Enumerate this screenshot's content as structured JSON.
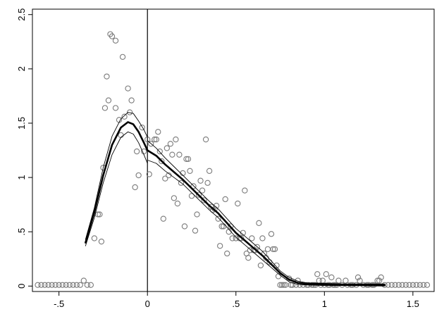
{
  "chart_data": {
    "type": "scatter",
    "title": "",
    "xlabel": "",
    "ylabel": "",
    "xlim": [
      -0.65,
      1.62
    ],
    "ylim": [
      -0.05,
      2.55
    ],
    "x_ticks": [
      -0.5,
      0,
      0.5,
      1,
      1.5
    ],
    "x_tick_labels": [
      "-.5",
      "0",
      ".5",
      "1",
      "1.5"
    ],
    "y_ticks": [
      0,
      0.5,
      1,
      1.5,
      2,
      2.5
    ],
    "y_tick_labels": [
      "0",
      ".5",
      "1",
      "1.5",
      "2",
      "2.5"
    ],
    "reference_line": {
      "axis": "x",
      "value": 0
    },
    "grid": false,
    "legend": "none",
    "series": [
      {
        "kind": "points",
        "marker": "hollow-circle",
        "color": "#7a7a7a",
        "points": [
          [
            -0.62,
            0.01
          ],
          [
            -0.6,
            0.01
          ],
          [
            -0.58,
            0.01
          ],
          [
            -0.56,
            0.01
          ],
          [
            -0.54,
            0.01
          ],
          [
            -0.52,
            0.01
          ],
          [
            -0.5,
            0.01
          ],
          [
            -0.48,
            0.01
          ],
          [
            -0.46,
            0.01
          ],
          [
            -0.44,
            0.01
          ],
          [
            -0.42,
            0.01
          ],
          [
            -0.4,
            0.01
          ],
          [
            -0.38,
            0.01
          ],
          [
            -0.36,
            0.05
          ],
          [
            -0.34,
            0.01
          ],
          [
            -0.32,
            0.01
          ],
          [
            -0.3,
            0.44
          ],
          [
            -0.28,
            0.66
          ],
          [
            -0.27,
            0.66
          ],
          [
            -0.26,
            0.41
          ],
          [
            -0.25,
            1.09
          ],
          [
            -0.24,
            1.64
          ],
          [
            -0.23,
            1.93
          ],
          [
            -0.22,
            1.71
          ],
          [
            -0.21,
            2.32
          ],
          [
            -0.2,
            2.3
          ],
          [
            -0.18,
            2.26
          ],
          [
            -0.18,
            1.64
          ],
          [
            -0.16,
            1.53
          ],
          [
            -0.15,
            1.39
          ],
          [
            -0.14,
            2.11
          ],
          [
            -0.13,
            1.56
          ],
          [
            -0.11,
            1.82
          ],
          [
            -0.1,
            1.6
          ],
          [
            -0.09,
            1.71
          ],
          [
            -0.07,
            0.91
          ],
          [
            -0.06,
            1.24
          ],
          [
            -0.05,
            1.02
          ],
          [
            -0.03,
            1.46
          ],
          [
            -0.02,
            1.24
          ],
          [
            0.0,
            1.35
          ],
          [
            0.01,
            1.03
          ],
          [
            0.02,
            1.31
          ],
          [
            0.04,
            1.35
          ],
          [
            0.05,
            1.35
          ],
          [
            0.06,
            1.42
          ],
          [
            0.07,
            1.24
          ],
          [
            0.08,
            1.15
          ],
          [
            0.09,
            0.62
          ],
          [
            0.1,
            0.99
          ],
          [
            0.11,
            1.27
          ],
          [
            0.12,
            1.02
          ],
          [
            0.13,
            1.31
          ],
          [
            0.14,
            1.21
          ],
          [
            0.15,
            0.81
          ],
          [
            0.16,
            1.35
          ],
          [
            0.17,
            0.76
          ],
          [
            0.18,
            1.21
          ],
          [
            0.19,
            0.95
          ],
          [
            0.2,
            1.04
          ],
          [
            0.21,
            0.55
          ],
          [
            0.22,
            1.17
          ],
          [
            0.23,
            1.17
          ],
          [
            0.24,
            1.06
          ],
          [
            0.25,
            0.83
          ],
          [
            0.26,
            0.92
          ],
          [
            0.27,
            0.51
          ],
          [
            0.28,
            0.66
          ],
          [
            0.29,
            0.84
          ],
          [
            0.3,
            0.97
          ],
          [
            0.31,
            0.88
          ],
          [
            0.32,
            0.79
          ],
          [
            0.33,
            1.35
          ],
          [
            0.34,
            0.95
          ],
          [
            0.35,
            1.06
          ],
          [
            0.36,
            0.73
          ],
          [
            0.37,
            0.7
          ],
          [
            0.38,
            0.71
          ],
          [
            0.39,
            0.74
          ],
          [
            0.4,
            0.62
          ],
          [
            0.41,
            0.37
          ],
          [
            0.42,
            0.55
          ],
          [
            0.43,
            0.55
          ],
          [
            0.44,
            0.8
          ],
          [
            0.45,
            0.3
          ],
          [
            0.46,
            0.5
          ],
          [
            0.47,
            0.55
          ],
          [
            0.48,
            0.44
          ],
          [
            0.5,
            0.44
          ],
          [
            0.51,
            0.76
          ],
          [
            0.52,
            0.44
          ],
          [
            0.53,
            0.44
          ],
          [
            0.54,
            0.49
          ],
          [
            0.55,
            0.88
          ],
          [
            0.56,
            0.3
          ],
          [
            0.57,
            0.26
          ],
          [
            0.58,
            0.33
          ],
          [
            0.59,
            0.44
          ],
          [
            0.6,
            0.33
          ],
          [
            0.61,
            0.33
          ],
          [
            0.62,
            0.36
          ],
          [
            0.63,
            0.58
          ],
          [
            0.64,
            0.19
          ],
          [
            0.65,
            0.44
          ],
          [
            0.66,
            0.3
          ],
          [
            0.67,
            0.26
          ],
          [
            0.68,
            0.34
          ],
          [
            0.69,
            0.22
          ],
          [
            0.7,
            0.48
          ],
          [
            0.71,
            0.34
          ],
          [
            0.72,
            0.34
          ],
          [
            0.73,
            0.19
          ],
          [
            0.74,
            0.09
          ],
          [
            0.75,
            0.01
          ],
          [
            0.76,
            0.01
          ],
          [
            0.77,
            0.01
          ],
          [
            0.78,
            0.01
          ],
          [
            0.8,
            0.07
          ],
          [
            0.81,
            0.01
          ],
          [
            0.82,
            0.01
          ],
          [
            0.84,
            0.01
          ],
          [
            0.85,
            0.05
          ],
          [
            0.86,
            0.01
          ],
          [
            0.88,
            0.01
          ],
          [
            0.9,
            0.01
          ],
          [
            0.91,
            0.01
          ],
          [
            0.93,
            0.01
          ],
          [
            0.94,
            0.01
          ],
          [
            0.95,
            0.01
          ],
          [
            0.96,
            0.11
          ],
          [
            0.97,
            0.05
          ],
          [
            0.98,
            0.01
          ],
          [
            0.99,
            0.05
          ],
          [
            1.0,
            0.01
          ],
          [
            1.01,
            0.11
          ],
          [
            1.02,
            0.01
          ],
          [
            1.03,
            0.01
          ],
          [
            1.04,
            0.08
          ],
          [
            1.05,
            0.01
          ],
          [
            1.06,
            0.01
          ],
          [
            1.07,
            0.01
          ],
          [
            1.08,
            0.05
          ],
          [
            1.1,
            0.01
          ],
          [
            1.12,
            0.05
          ],
          [
            1.13,
            0.01
          ],
          [
            1.15,
            0.01
          ],
          [
            1.16,
            0.01
          ],
          [
            1.18,
            0.01
          ],
          [
            1.19,
            0.08
          ],
          [
            1.2,
            0.05
          ],
          [
            1.22,
            0.01
          ],
          [
            1.24,
            0.01
          ],
          [
            1.25,
            0.01
          ],
          [
            1.27,
            0.01
          ],
          [
            1.28,
            0.01
          ],
          [
            1.3,
            0.05
          ],
          [
            1.31,
            0.05
          ],
          [
            1.32,
            0.08
          ],
          [
            1.34,
            0.01
          ],
          [
            1.36,
            0.01
          ],
          [
            1.38,
            0.01
          ],
          [
            1.4,
            0.01
          ],
          [
            1.42,
            0.01
          ],
          [
            1.44,
            0.01
          ],
          [
            1.46,
            0.01
          ],
          [
            1.48,
            0.01
          ],
          [
            1.5,
            0.01
          ],
          [
            1.52,
            0.01
          ],
          [
            1.54,
            0.01
          ],
          [
            1.56,
            0.01
          ],
          [
            1.58,
            0.01
          ]
        ]
      },
      {
        "kind": "line",
        "role": "fit-left",
        "color": "#000000",
        "width": "thick",
        "points": [
          [
            -0.35,
            0.4
          ],
          [
            -0.3,
            0.68
          ],
          [
            -0.25,
            1.02
          ],
          [
            -0.2,
            1.3
          ],
          [
            -0.15,
            1.46
          ],
          [
            -0.11,
            1.51
          ],
          [
            -0.08,
            1.49
          ],
          [
            -0.05,
            1.42
          ],
          [
            -0.02,
            1.32
          ],
          [
            0.0,
            1.25
          ]
        ]
      },
      {
        "kind": "line",
        "role": "ci-left-upper",
        "color": "#000000",
        "width": "thin",
        "points": [
          [
            -0.35,
            0.43
          ],
          [
            -0.3,
            0.72
          ],
          [
            -0.25,
            1.09
          ],
          [
            -0.2,
            1.38
          ],
          [
            -0.15,
            1.54
          ],
          [
            -0.11,
            1.6
          ],
          [
            -0.08,
            1.59
          ],
          [
            -0.05,
            1.52
          ],
          [
            -0.02,
            1.44
          ],
          [
            0.0,
            1.37
          ]
        ]
      },
      {
        "kind": "line",
        "role": "ci-left-lower",
        "color": "#000000",
        "width": "thin",
        "points": [
          [
            -0.35,
            0.37
          ],
          [
            -0.3,
            0.63
          ],
          [
            -0.25,
            0.95
          ],
          [
            -0.2,
            1.21
          ],
          [
            -0.15,
            1.37
          ],
          [
            -0.11,
            1.42
          ],
          [
            -0.08,
            1.4
          ],
          [
            -0.05,
            1.32
          ],
          [
            -0.02,
            1.21
          ],
          [
            0.0,
            1.13
          ]
        ]
      },
      {
        "kind": "line",
        "role": "fit-right",
        "color": "#000000",
        "width": "thick",
        "points": [
          [
            0.0,
            1.25
          ],
          [
            0.05,
            1.2
          ],
          [
            0.1,
            1.12
          ],
          [
            0.15,
            1.05
          ],
          [
            0.2,
            0.98
          ],
          [
            0.25,
            0.9
          ],
          [
            0.3,
            0.82
          ],
          [
            0.35,
            0.74
          ],
          [
            0.4,
            0.67
          ],
          [
            0.45,
            0.58
          ],
          [
            0.5,
            0.49
          ],
          [
            0.55,
            0.42
          ],
          [
            0.6,
            0.35
          ],
          [
            0.65,
            0.28
          ],
          [
            0.7,
            0.2
          ],
          [
            0.75,
            0.12
          ],
          [
            0.8,
            0.06
          ],
          [
            0.85,
            0.03
          ],
          [
            0.9,
            0.02
          ],
          [
            1.0,
            0.015
          ],
          [
            1.1,
            0.012
          ],
          [
            1.2,
            0.011
          ],
          [
            1.34,
            0.01
          ]
        ]
      },
      {
        "kind": "line",
        "role": "ci-right-upper",
        "color": "#000000",
        "width": "thin",
        "points": [
          [
            0.0,
            1.34
          ],
          [
            0.05,
            1.27
          ],
          [
            0.1,
            1.18
          ],
          [
            0.15,
            1.1
          ],
          [
            0.2,
            1.02
          ],
          [
            0.25,
            0.94
          ],
          [
            0.3,
            0.86
          ],
          [
            0.35,
            0.78
          ],
          [
            0.4,
            0.71
          ],
          [
            0.45,
            0.62
          ],
          [
            0.5,
            0.53
          ],
          [
            0.55,
            0.46
          ],
          [
            0.6,
            0.39
          ],
          [
            0.65,
            0.32
          ],
          [
            0.7,
            0.23
          ],
          [
            0.75,
            0.14
          ],
          [
            0.8,
            0.08
          ],
          [
            0.85,
            0.045
          ],
          [
            0.9,
            0.03
          ],
          [
            1.0,
            0.025
          ],
          [
            1.1,
            0.02
          ],
          [
            1.2,
            0.02
          ],
          [
            1.34,
            0.02
          ]
        ]
      },
      {
        "kind": "line",
        "role": "ci-right-lower",
        "color": "#000000",
        "width": "thin",
        "points": [
          [
            0.0,
            1.16
          ],
          [
            0.05,
            1.13
          ],
          [
            0.1,
            1.06
          ],
          [
            0.15,
            1.0
          ],
          [
            0.2,
            0.94
          ],
          [
            0.25,
            0.86
          ],
          [
            0.3,
            0.78
          ],
          [
            0.35,
            0.7
          ],
          [
            0.4,
            0.63
          ],
          [
            0.45,
            0.54
          ],
          [
            0.5,
            0.45
          ],
          [
            0.55,
            0.38
          ],
          [
            0.6,
            0.31
          ],
          [
            0.65,
            0.24
          ],
          [
            0.7,
            0.17
          ],
          [
            0.75,
            0.1
          ],
          [
            0.8,
            0.04
          ],
          [
            0.85,
            0.015
          ],
          [
            0.9,
            0.01
          ],
          [
            1.0,
            0.005
          ],
          [
            1.1,
            0.004
          ],
          [
            1.2,
            0.003
          ],
          [
            1.34,
            0.0
          ]
        ]
      }
    ]
  }
}
